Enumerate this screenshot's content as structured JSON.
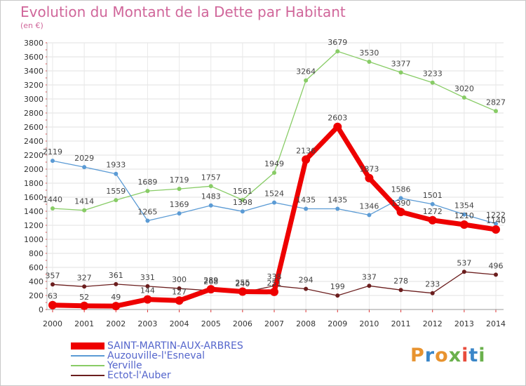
{
  "title": "Evolution du Montant de la Dette par Habitant",
  "subtitle": "(en €)",
  "logo": {
    "text": "Proxiti",
    "colors": [
      "#e8932f",
      "#3a86c8",
      "#e8932f",
      "#6ab04c",
      "#e84c3d",
      "#3a86c8",
      "#6ab04c"
    ]
  },
  "chart_data": {
    "type": "line",
    "x": [
      "2000",
      "2001",
      "2002",
      "2003",
      "2004",
      "2005",
      "2006",
      "2007",
      "2008",
      "2009",
      "2010",
      "2011",
      "2012",
      "2013",
      "2014"
    ],
    "ylim": [
      0,
      3800
    ],
    "yticks": [
      0,
      200,
      400,
      600,
      800,
      1000,
      1200,
      1400,
      1600,
      1800,
      2000,
      2200,
      2400,
      2600,
      2800,
      3000,
      3200,
      3400,
      3600,
      3800
    ],
    "grid": true,
    "legend_position": "bottom-left",
    "series": [
      {
        "name": "Ectot-l'Auber",
        "color": "#6b1e1e",
        "width": 1.3,
        "marker_r": 3,
        "values": [
          357,
          327,
          361,
          331,
          300,
          268,
          240,
          338,
          294,
          199,
          337,
          278,
          233,
          537,
          496
        ],
        "labels": [
          "357",
          "327",
          "361",
          "331",
          "300",
          "268",
          "240",
          "338",
          "294",
          "199",
          "337",
          "278",
          "233",
          "537",
          "496"
        ]
      },
      {
        "name": "Yerville",
        "color": "#88cc66",
        "width": 1.3,
        "marker_r": 3,
        "values": [
          1440,
          1414,
          1559,
          1689,
          1719,
          1757,
          1561,
          1949,
          3264,
          3679,
          3530,
          3377,
          3233,
          3020,
          2827
        ],
        "labels": [
          "1440",
          "1414",
          "1559",
          "1689",
          "1719",
          "1757",
          "1561",
          "1949",
          "3264",
          "3679",
          "3530",
          "3377",
          "3233",
          "3020",
          "2827"
        ]
      },
      {
        "name": "Auzouville-l'Esneval",
        "color": "#5b9bd5",
        "width": 1.3,
        "marker_r": 3,
        "values": [
          2119,
          2029,
          1933,
          1265,
          1369,
          1483,
          1398,
          1524,
          1435,
          1435,
          1346,
          1586,
          1501,
          1354,
          1222
        ],
        "labels": [
          "2119",
          "2029",
          "1933",
          "1265",
          "1369",
          "1483",
          "1398",
          "1524",
          "1435",
          "1435",
          "1346",
          "1586",
          "1501",
          "1354",
          "1222"
        ]
      },
      {
        "name": "SAINT-MARTIN-AUX-ARBRES",
        "color": "#ee0000",
        "width": 7,
        "marker_r": 6,
        "values": [
          63,
          52,
          49,
          144,
          127,
          289,
          255,
          251,
          2136,
          2603,
          1873,
          1390,
          1272,
          1210,
          1140
        ],
        "labels": [
          "63",
          "52",
          "49",
          "144",
          "127",
          "289",
          "255",
          "251",
          "2136",
          "2603",
          "1873",
          "1390",
          "1272",
          "1210",
          "1140"
        ]
      }
    ],
    "legend": [
      {
        "name": "SAINT-MARTIN-AUX-ARBRES",
        "color": "#ee0000",
        "thickness": 10
      },
      {
        "name": "Auzouville-l'Esneval",
        "color": "#5b9bd5",
        "thickness": 2
      },
      {
        "name": "Yerville",
        "color": "#88cc66",
        "thickness": 2
      },
      {
        "name": "Ectot-l'Auber",
        "color": "#6b1e1e",
        "thickness": 2
      }
    ]
  }
}
